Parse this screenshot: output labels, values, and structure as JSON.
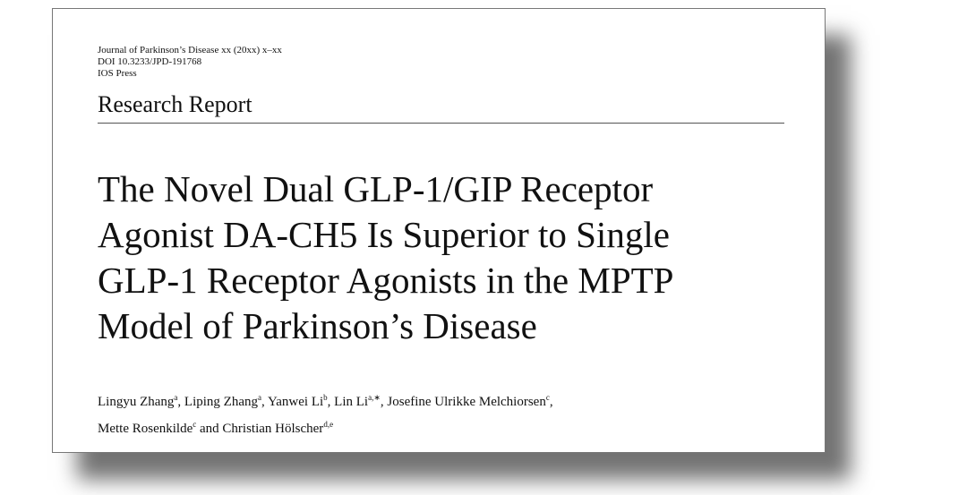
{
  "header": {
    "journal": "Journal of Parkinson’s Disease xx (20xx) x–xx",
    "doi": "DOI 10.3233/JPD-191768",
    "publisher": "IOS Press"
  },
  "article_type": "Research Report",
  "title_lines": [
    "The Novel Dual GLP-1/GIP Receptor",
    "Agonist DA-CH5 Is Superior to Single",
    "GLP-1 Receptor Agonists in the MPTP",
    "Model of Parkinson’s Disease"
  ],
  "authors": [
    {
      "name": "Lingyu Zhang",
      "aff": "a",
      "sep": ", "
    },
    {
      "name": "Liping Zhang",
      "aff": "a",
      "sep": ", "
    },
    {
      "name": "Yanwei Li",
      "aff": "b",
      "sep": ", "
    },
    {
      "name": "Lin Li",
      "aff": "a,∗",
      "sep": ", "
    },
    {
      "name": "Josefine Ulrikke Melchiorsen",
      "aff": "c",
      "sep": ","
    },
    {
      "name": "Mette Rosenkilde",
      "aff": "c",
      "sep": " and "
    },
    {
      "name": "Christian Hölscher",
      "aff": "d,e",
      "sep": ""
    }
  ]
}
